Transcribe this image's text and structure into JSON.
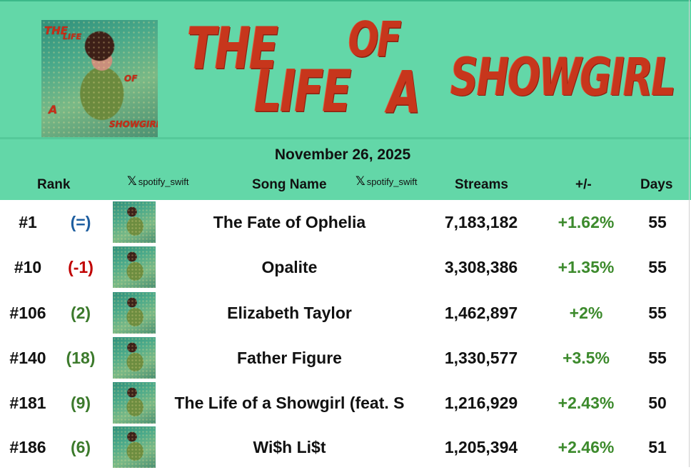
{
  "header": {
    "cover": {
      "lines": [
        "THE",
        "LIFE",
        "OF",
        "A",
        "SHOWGIRL"
      ]
    },
    "title_words": [
      "THE",
      "LIFE",
      "OF",
      "A",
      "SHOWGIRL"
    ],
    "date": "November 26, 2025",
    "watermark": "spotify_swift",
    "columns": {
      "rank": "Rank",
      "song": "Song Name",
      "streams": "Streams",
      "change": "+/-",
      "days": "Days"
    }
  },
  "colors": {
    "header_bg": "#63d7a8",
    "title_red": "#c7361c",
    "positive_green": "#3c8a2c",
    "neutral_blue": "#1f5fa0",
    "negative_red": "#c00000",
    "rise_green": "#3c7a2c"
  },
  "rows": [
    {
      "rank": "#1",
      "change": "(=)",
      "change_type": "neutral",
      "song": "The Fate of Ophelia",
      "streams": "7,183,182",
      "pct": "+1.62%",
      "days": "55"
    },
    {
      "rank": "#10",
      "change": "(-1)",
      "change_type": "down",
      "song": "Opalite",
      "streams": "3,308,386",
      "pct": "+1.35%",
      "days": "55"
    },
    {
      "rank": "#106",
      "change": "(2)",
      "change_type": "up",
      "song": "Elizabeth Taylor",
      "streams": "1,462,897",
      "pct": "+2%",
      "days": "55"
    },
    {
      "rank": "#140",
      "change": "(18)",
      "change_type": "up",
      "song": "Father Figure",
      "streams": "1,330,577",
      "pct": "+3.5%",
      "days": "55"
    },
    {
      "rank": "#181",
      "change": "(9)",
      "change_type": "up",
      "song": "The Life of a Showgirl (feat. S",
      "streams": "1,216,929",
      "pct": "+2.43%",
      "days": "50"
    },
    {
      "rank": "#186",
      "change": "(6)",
      "change_type": "up",
      "song": "Wi$h Li$t",
      "streams": "1,205,394",
      "pct": "+2.46%",
      "days": "51"
    }
  ]
}
